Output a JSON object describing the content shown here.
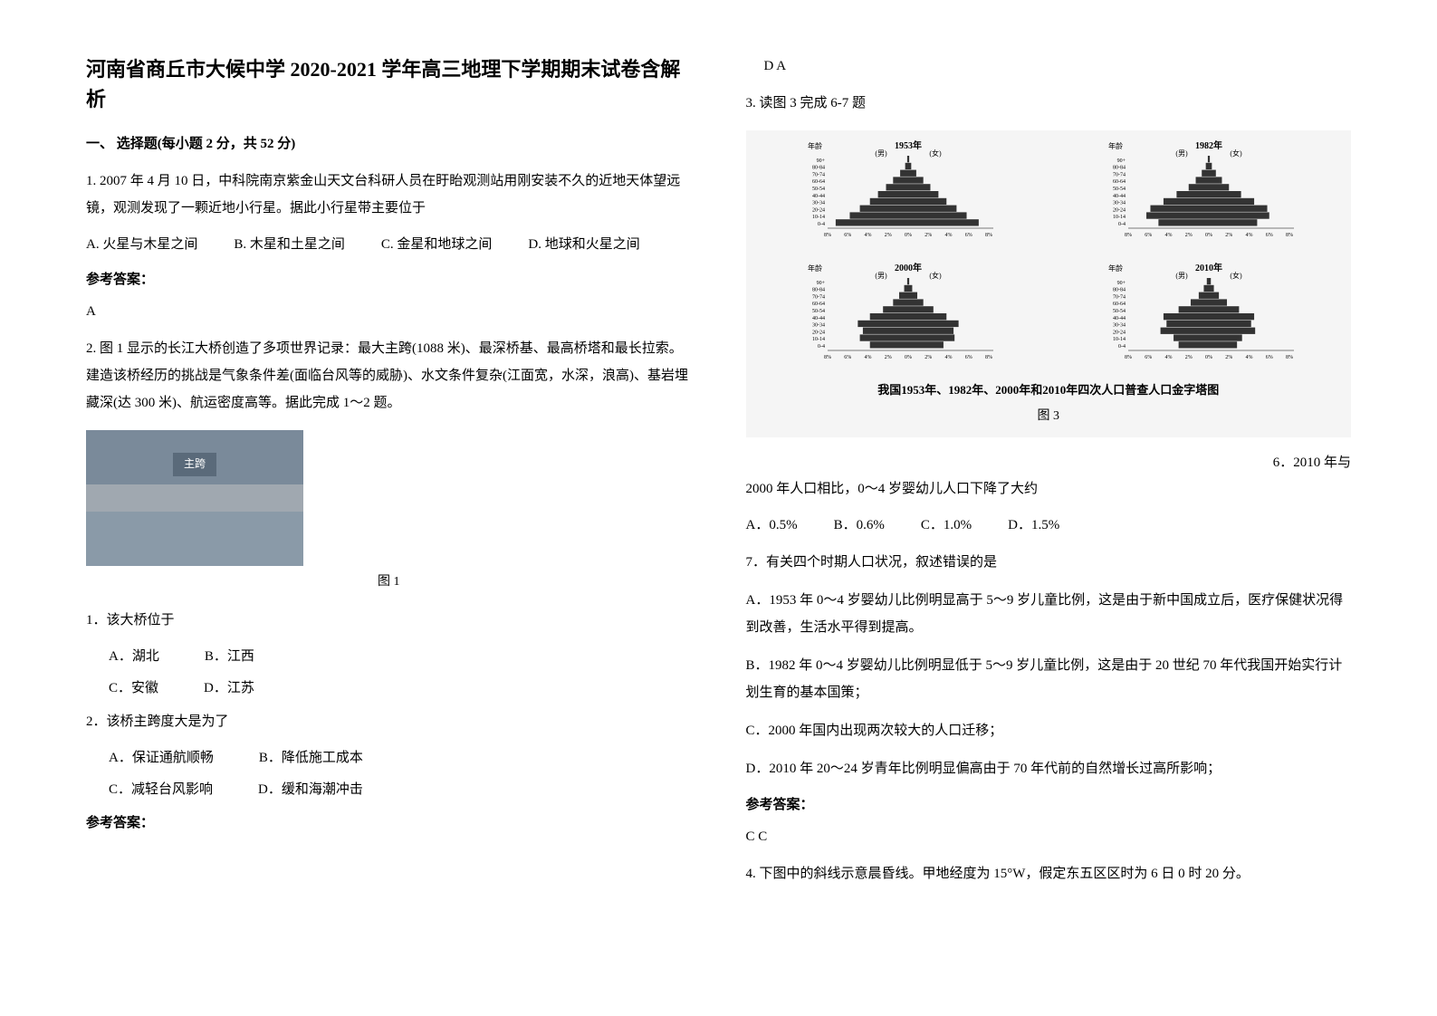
{
  "title": "河南省商丘市大候中学 2020-2021 学年高三地理下学期期末试卷含解析",
  "section1": {
    "header": "一、 选择题(每小题 2 分，共 52 分)"
  },
  "q1": {
    "text": "1. 2007 年 4 月 10 日，中科院南京紫金山天文台科研人员在盱眙观测站用刚安装不久的近地天体望远镜，观测发现了一颗近地小行星。据此小行星带主要位于",
    "optA": "A. 火星与木星之间",
    "optB": "B. 木星和土星之间",
    "optC": "C. 金星和地球之间",
    "optD": "D. 地球和火星之间",
    "answerLabel": "参考答案：",
    "answer": "A"
  },
  "q2": {
    "intro": "2. 图 1 显示的长江大桥创造了多项世界记录：最大主跨(1088 米)、最深桥基、最高桥塔和最长拉索。建造该桥经历的挑战是气象条件差(面临台风等的威胁)、水文条件复杂(江面宽，水深，浪高)、基岩埋藏深(达 300 米)、航运密度高等。据此完成 1～2 题。",
    "figureLabel": "主跨",
    "figureCaption": "图 1",
    "sub1": {
      "text": "1．该大桥位于",
      "optA": "A．湖北",
      "optB": "B．江西",
      "optC": "C．安徽",
      "optD": "D．江苏"
    },
    "sub2": {
      "text": "2．该桥主跨度大是为了",
      "optA": "A．保证通航顺畅",
      "optB": "B．降低施工成本",
      "optC": "C．减轻台风影响",
      "optD": "D．缓和海潮冲击"
    },
    "answerLabel": "参考答案：",
    "answer": "D A"
  },
  "q3": {
    "intro": "3. 读图 3 完成 6-7 题",
    "pyramids": {
      "ageLabel": "年龄",
      "maleLabel": "(男)",
      "femaleLabel": "(女)",
      "ageGroups": [
        "90+",
        "80-84",
        "70-74",
        "60-64",
        "50-54",
        "40-44",
        "30-34",
        "20-24",
        "10-14",
        "0-4"
      ],
      "xAxisLabels": [
        "8%",
        "6%",
        "4%",
        "2%",
        "0%",
        "2%",
        "4%",
        "6%",
        "8%"
      ],
      "years": [
        "1953年",
        "1982年",
        "2000年",
        "2010年"
      ],
      "data1953": {
        "male": [
          0.1,
          0.3,
          0.8,
          1.5,
          2.2,
          3.0,
          3.8,
          4.8,
          5.8,
          7.2
        ],
        "female": [
          0.1,
          0.3,
          0.8,
          1.5,
          2.2,
          3.0,
          3.8,
          4.8,
          5.8,
          7.0
        ]
      },
      "data1982": {
        "male": [
          0.1,
          0.3,
          0.7,
          1.3,
          2.0,
          3.2,
          4.5,
          5.8,
          6.2,
          5.0
        ],
        "female": [
          0.1,
          0.3,
          0.7,
          1.3,
          2.0,
          3.2,
          4.5,
          5.8,
          6.0,
          4.8
        ]
      },
      "data2000": {
        "male": [
          0.1,
          0.4,
          0.9,
          1.5,
          2.5,
          3.8,
          5.0,
          4.5,
          4.8,
          3.8
        ],
        "female": [
          0.1,
          0.4,
          0.9,
          1.5,
          2.5,
          3.8,
          5.0,
          4.5,
          4.6,
          3.5
        ]
      },
      "data2010": {
        "male": [
          0.2,
          0.5,
          1.0,
          1.8,
          3.0,
          4.5,
          4.2,
          4.8,
          3.5,
          3.0
        ],
        "female": [
          0.2,
          0.5,
          1.0,
          1.8,
          3.0,
          4.5,
          4.2,
          4.6,
          3.3,
          2.8
        ]
      },
      "caption": "我国1953年、1982年、2000年和2010年四次人口普查人口金字塔图",
      "figureNum": "图 3"
    },
    "sub6": {
      "prefix": "6．2010 年与",
      "text": "2000 年人口相比，0～4 岁婴幼儿人口下降了大约",
      "optA": "A．0.5%",
      "optB": "B．0.6%",
      "optC": "C．1.0%",
      "optD": "D．1.5%"
    },
    "sub7": {
      "text": "7．有关四个时期人口状况，叙述错误的是",
      "optA": "A．1953 年 0～4 岁婴幼儿比例明显高于 5～9 岁儿童比例，这是由于新中国成立后，医疗保健状况得到改善，生活水平得到提高。",
      "optB": "B．1982 年 0～4 岁婴幼儿比例明显低于 5～9 岁儿童比例，这是由于 20 世纪 70 年代我国开始实行计划生育的基本国策；",
      "optC": "C．2000 年国内出现两次较大的人口迁移；",
      "optD": "D．2010 年 20～24 岁青年比例明显偏高由于 70 年代前的自然增长过高所影响；"
    },
    "answerLabel": "参考答案：",
    "answer": "C C"
  },
  "q4": {
    "text": "4. 下图中的斜线示意晨昏线。甲地经度为 15°W，假定东五区区时为 6 日 0 时 20 分。"
  },
  "colors": {
    "text": "#000000",
    "background": "#ffffff",
    "pyramidFill": "#333333",
    "figureBg": "#f5f5f5"
  }
}
